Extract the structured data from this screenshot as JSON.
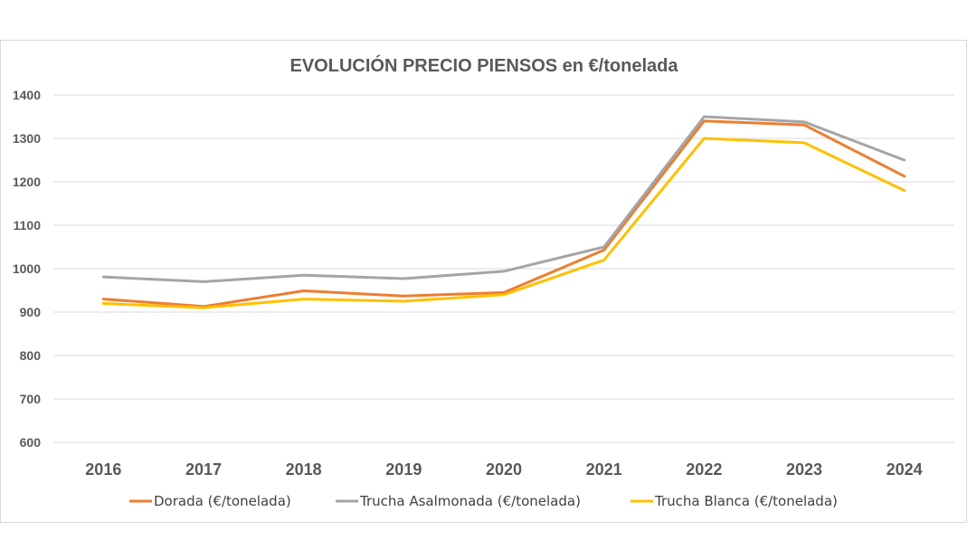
{
  "chart_data": {
    "type": "line",
    "title": "EVOLUCIÓN PRECIO PIENSOS en €/tonelada",
    "categories": [
      "2016",
      "2017",
      "2018",
      "2019",
      "2020",
      "2021",
      "2022",
      "2023",
      "2024"
    ],
    "ylim": [
      600,
      1400
    ],
    "yticks": [
      "1400",
      "1300",
      "1200",
      "1100",
      "1000",
      "900",
      "800",
      "700",
      "600"
    ],
    "grid": true,
    "legend_position": "bottom",
    "series": [
      {
        "name": "Dorada (€/tonelada)",
        "color": "#ED7D31",
        "values": [
          930,
          913,
          949,
          937,
          945,
          1043,
          1340,
          1331,
          1213
        ]
      },
      {
        "name": "Trucha Asalmonada (€/tonelada)",
        "color": "#A5A5A5",
        "values": [
          981,
          970,
          985,
          977,
          994,
          1050,
          1350,
          1338,
          1250
        ]
      },
      {
        "name": "Trucha Blanca (€/tonelada)",
        "color": "#FFC000",
        "values": [
          920,
          910,
          930,
          925,
          940,
          1020,
          1300,
          1290,
          1180
        ]
      }
    ]
  }
}
